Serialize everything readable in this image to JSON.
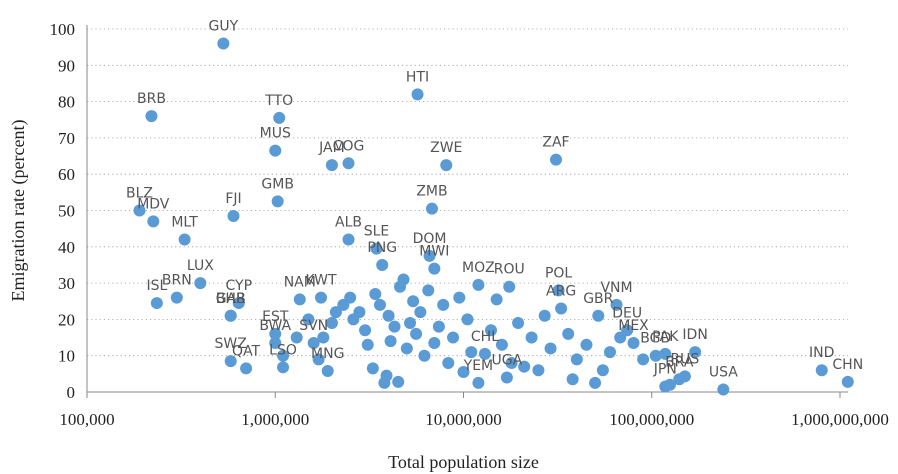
{
  "chart_data": {
    "type": "scatter",
    "xlabel": "Total population size",
    "ylabel": "Emigration rate (percent)",
    "x_scale": "log",
    "xlim": [
      100000,
      1000000000
    ],
    "ylim": [
      0,
      100
    ],
    "grid": "horizontal dotted",
    "x_ticks": [
      "100,000",
      "1,000,000",
      "10,000,000",
      "100,000,000",
      "1,000,000,000"
    ],
    "y_ticks": [
      "0",
      "10",
      "20",
      "30",
      "40",
      "50",
      "60",
      "70",
      "80",
      "90",
      "100"
    ],
    "point_color": "#5b9bd5",
    "points": [
      {
        "label": "GUY",
        "x": 530000,
        "y": 96
      },
      {
        "label": "BRB",
        "x": 220000,
        "y": 76
      },
      {
        "label": "TTO",
        "x": 1050000,
        "y": 75.5
      },
      {
        "label": "HTI",
        "x": 5700000,
        "y": 82
      },
      {
        "label": "MUS",
        "x": 1000000,
        "y": 66.5
      },
      {
        "label": "JAM",
        "x": 2000000,
        "y": 62.5
      },
      {
        "label": "COG",
        "x": 2450000,
        "y": 63
      },
      {
        "label": "ZWE",
        "x": 8100000,
        "y": 62.5
      },
      {
        "label": "ZAF",
        "x": 31000000,
        "y": 64
      },
      {
        "label": "GMB",
        "x": 1030000,
        "y": 52.5
      },
      {
        "label": "FJI",
        "x": 600000,
        "y": 48.5
      },
      {
        "label": "ZMB",
        "x": 6800000,
        "y": 50.5
      },
      {
        "label": "BLZ",
        "x": 190000,
        "y": 50
      },
      {
        "label": "MDV",
        "x": 225000,
        "y": 47
      },
      {
        "label": "MLT",
        "x": 330000,
        "y": 42
      },
      {
        "label": "ALB",
        "x": 2450000,
        "y": 42
      },
      {
        "label": "SLE",
        "x": 3450000,
        "y": 39.5
      },
      {
        "label": "DOM",
        "x": 6600000,
        "y": 37.5
      },
      {
        "label": "PNG",
        "x": 3700000,
        "y": 35
      },
      {
        "label": "MWI",
        "x": 7000000,
        "y": 34
      },
      {
        "label": "LUX",
        "x": 400000,
        "y": 30
      },
      {
        "label": "ISL",
        "x": 235000,
        "y": 24.5
      },
      {
        "label": "BRN",
        "x": 300000,
        "y": 26
      },
      {
        "label": "CYP",
        "x": 640000,
        "y": 24.5
      },
      {
        "label": "BHR",
        "x": 580000,
        "y": 21
      },
      {
        "label": "NAM",
        "x": 1350000,
        "y": 25.5
      },
      {
        "label": "MOZ",
        "x": 12000000,
        "y": 29.5
      },
      {
        "label": "ROU",
        "x": 17500000,
        "y": 29
      },
      {
        "label": "POL",
        "x": 32000000,
        "y": 28
      },
      {
        "label": "ARG",
        "x": 33000000,
        "y": 23
      },
      {
        "label": "GBR",
        "x": 52000000,
        "y": 21
      },
      {
        "label": "VNM",
        "x": 65000000,
        "y": 24
      },
      {
        "label": "DEU",
        "x": 74000000,
        "y": 17
      },
      {
        "label": "MEX",
        "x": 80000000,
        "y": 13.5
      },
      {
        "label": "PAK",
        "x": 118000000,
        "y": 10.5
      },
      {
        "label": "BGD",
        "x": 105000000,
        "y": 10
      },
      {
        "label": "IDN",
        "x": 170000000,
        "y": 11
      },
      {
        "label": "USA",
        "x": 240000000,
        "y": 0.7
      },
      {
        "label": "BRA",
        "x": 140000000,
        "y": 3.5
      },
      {
        "label": "RUS",
        "x": 150000000,
        "y": 4.3
      },
      {
        "label": "JPN",
        "x": 118000000,
        "y": 1.5
      },
      {
        "label": "IND",
        "x": 800000000,
        "y": 6
      },
      {
        "label": "CHN",
        "x": 1100000000,
        "y": 2.8
      },
      {
        "label": "SWZ",
        "x": 580000,
        "y": 8.5
      },
      {
        "label": "QAT",
        "x": 700000,
        "y": 6.5
      },
      {
        "label": "LSO",
        "x": 1100000,
        "y": 6.8
      },
      {
        "label": "MNG",
        "x": 1900000,
        "y": 5.8
      },
      {
        "label": "BWA",
        "x": 1000000,
        "y": 13.5
      },
      {
        "label": "GAB",
        "x": 580000,
        "y": 21
      },
      {
        "label": "EST",
        "x": 1000000,
        "y": 16
      },
      {
        "label": "SVN",
        "x": 1600000,
        "y": 13.5
      },
      {
        "label": "YEM",
        "x": 12000000,
        "y": 2.5
      },
      {
        "label": "UGA",
        "x": 17000000,
        "y": 4
      },
      {
        "label": "CHL",
        "x": 13000000,
        "y": 10.5
      },
      {
        "label": "KWT",
        "x": 1750000,
        "y": 26
      }
    ],
    "unlabeled_points": [
      {
        "x": 1100000,
        "y": 10
      },
      {
        "x": 1300000,
        "y": 15
      },
      {
        "x": 1500000,
        "y": 20
      },
      {
        "x": 1700000,
        "y": 9
      },
      {
        "x": 1800000,
        "y": 15
      },
      {
        "x": 2000000,
        "y": 19
      },
      {
        "x": 2100000,
        "y": 22
      },
      {
        "x": 2300000,
        "y": 24
      },
      {
        "x": 2500000,
        "y": 26
      },
      {
        "x": 2600000,
        "y": 20
      },
      {
        "x": 2800000,
        "y": 22
      },
      {
        "x": 3000000,
        "y": 17
      },
      {
        "x": 3100000,
        "y": 13
      },
      {
        "x": 3300000,
        "y": 6.5
      },
      {
        "x": 3400000,
        "y": 27
      },
      {
        "x": 3600000,
        "y": 24
      },
      {
        "x": 3800000,
        "y": 2.5
      },
      {
        "x": 3900000,
        "y": 4.5
      },
      {
        "x": 4000000,
        "y": 21
      },
      {
        "x": 4100000,
        "y": 14
      },
      {
        "x": 4300000,
        "y": 18
      },
      {
        "x": 4500000,
        "y": 2.8
      },
      {
        "x": 4600000,
        "y": 29
      },
      {
        "x": 4800000,
        "y": 31
      },
      {
        "x": 5000000,
        "y": 12
      },
      {
        "x": 5200000,
        "y": 19
      },
      {
        "x": 5400000,
        "y": 25
      },
      {
        "x": 5600000,
        "y": 16
      },
      {
        "x": 5900000,
        "y": 22
      },
      {
        "x": 6200000,
        "y": 10
      },
      {
        "x": 6500000,
        "y": 28
      },
      {
        "x": 7000000,
        "y": 13.5
      },
      {
        "x": 7400000,
        "y": 18
      },
      {
        "x": 7800000,
        "y": 24
      },
      {
        "x": 8300000,
        "y": 8
      },
      {
        "x": 8800000,
        "y": 15
      },
      {
        "x": 9500000,
        "y": 26
      },
      {
        "x": 10000000,
        "y": 5.5
      },
      {
        "x": 10500000,
        "y": 20
      },
      {
        "x": 11000000,
        "y": 11
      },
      {
        "x": 14000000,
        "y": 17
      },
      {
        "x": 15000000,
        "y": 25.5
      },
      {
        "x": 16000000,
        "y": 13
      },
      {
        "x": 18000000,
        "y": 8
      },
      {
        "x": 19500000,
        "y": 19
      },
      {
        "x": 21000000,
        "y": 7
      },
      {
        "x": 23000000,
        "y": 15
      },
      {
        "x": 25000000,
        "y": 6
      },
      {
        "x": 27000000,
        "y": 21
      },
      {
        "x": 29000000,
        "y": 12
      },
      {
        "x": 36000000,
        "y": 16
      },
      {
        "x": 38000000,
        "y": 3.5
      },
      {
        "x": 40000000,
        "y": 9
      },
      {
        "x": 45000000,
        "y": 13
      },
      {
        "x": 50000000,
        "y": 2.5
      },
      {
        "x": 55000000,
        "y": 6
      },
      {
        "x": 60000000,
        "y": 11
      },
      {
        "x": 68000000,
        "y": 15
      },
      {
        "x": 90000000,
        "y": 9
      },
      {
        "x": 125000000,
        "y": 2
      }
    ]
  }
}
